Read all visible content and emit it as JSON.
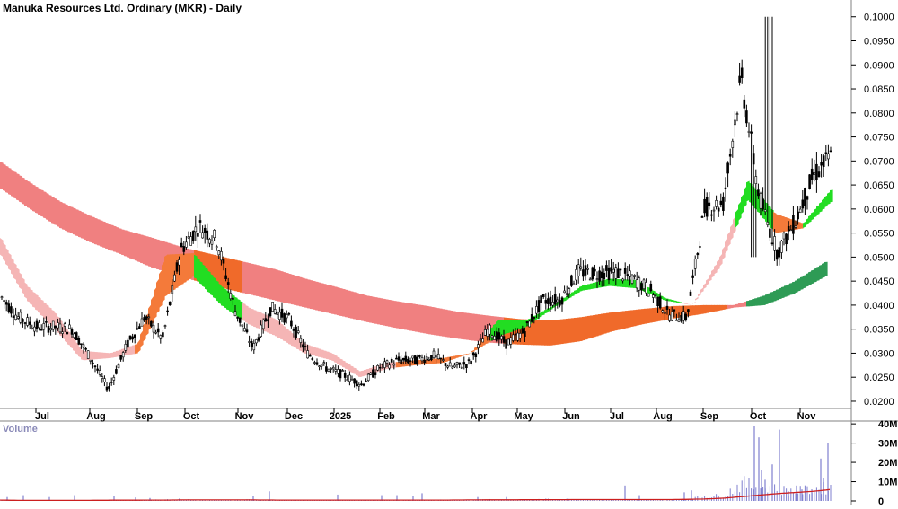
{
  "chart_data": {
    "type": "candlestick",
    "title": "Manuka Resources Ltd. Ordinary (MKR) - Daily",
    "price_axis": {
      "ylim": [
        0.0185,
        0.1035
      ],
      "ticks": [
        "0.0200",
        "0.0250",
        "0.0300",
        "0.0350",
        "0.0400",
        "0.0450",
        "0.0500",
        "0.0550",
        "0.0600",
        "0.0650",
        "0.0700",
        "0.0750",
        "0.0800",
        "0.0850",
        "0.0900",
        "0.0950",
        "0.1000"
      ],
      "position": "right"
    },
    "volume_axis": {
      "label": "Volume",
      "ylim": [
        0,
        41
      ],
      "ticks": [
        "0",
        "10M",
        "20M",
        "30M",
        "40M"
      ]
    },
    "x_months": [
      "Jul",
      "Aug",
      "Sep",
      "Oct",
      "Nov",
      "Dec",
      "2025",
      "Feb",
      "Mar",
      "Apr",
      "May",
      "Jun",
      "Jul",
      "Aug",
      "Sep",
      "Oct",
      "Nov"
    ],
    "price_anchors": [
      [
        0.043,
        0.041
      ],
      [
        0.038,
        0.037
      ],
      [
        0.035,
        0.036
      ],
      [
        0.036,
        0.035
      ],
      [
        0.034,
        0.036
      ],
      [
        0.03,
        0.028
      ],
      [
        0.023,
        0.022
      ],
      [
        0.03,
        0.033
      ],
      [
        0.038,
        0.037
      ],
      [
        0.032,
        0.034
      ],
      [
        0.048,
        0.055
      ],
      [
        0.057,
        0.056
      ],
      [
        0.055,
        0.052
      ],
      [
        0.042,
        0.036
      ],
      [
        0.024,
        0.038
      ],
      [
        0.039,
        0.04
      ],
      [
        0.036,
        0.038
      ],
      [
        0.031,
        0.029
      ],
      [
        0.028,
        0.026
      ],
      [
        0.026,
        0.025
      ],
      [
        0.023,
        0.024
      ],
      [
        0.025,
        0.029
      ],
      [
        0.029,
        0.028
      ],
      [
        0.028,
        0.029
      ],
      [
        0.029,
        0.03
      ],
      [
        0.028,
        0.026
      ],
      [
        0.027,
        0.029
      ],
      [
        0.036,
        0.034
      ],
      [
        0.033,
        0.031
      ],
      [
        0.033,
        0.036
      ],
      [
        0.04,
        0.042
      ],
      [
        0.039,
        0.043
      ],
      [
        0.046,
        0.048
      ],
      [
        0.047,
        0.046
      ],
      [
        0.046,
        0.048
      ],
      [
        0.046,
        0.045
      ],
      [
        0.044,
        0.042
      ],
      [
        0.04,
        0.036
      ],
      [
        0.035,
        0.04
      ],
      [
        0.055,
        0.066
      ],
      [
        0.06,
        0.062
      ],
      [
        0.085,
        0.09
      ],
      [
        0.065,
        0.06
      ],
      [
        0.05,
        0.052
      ],
      [
        0.055,
        0.06
      ],
      [
        0.068,
        0.066
      ],
      [
        0.07,
        0.072
      ]
    ],
    "volume_anchors_M": [
      0.4,
      0.2,
      0.3,
      0.2,
      0.3,
      0.4,
      0.5,
      0.4,
      0.5,
      0.6,
      0.8,
      0.5,
      0.4,
      0.6,
      0.6,
      0.4,
      0.3,
      0.3,
      0.4,
      0.4,
      0.5,
      0.4,
      0.4,
      0.4,
      0.5,
      0.5,
      0.6,
      0.8,
      0.6,
      0.6,
      0.8,
      0.9,
      0.8,
      0.6,
      0.6,
      0.6,
      0.5,
      0.6,
      0.9,
      2.5,
      2.5,
      9,
      7,
      6,
      5,
      6,
      7
    ],
    "volume_average_M": [
      0.4,
      0.3,
      0.3,
      0.3,
      0.3,
      0.3,
      0.35,
      0.35,
      0.4,
      0.4,
      0.5,
      0.5,
      0.5,
      0.5,
      0.5,
      0.45,
      0.4,
      0.4,
      0.4,
      0.4,
      0.4,
      0.4,
      0.4,
      0.4,
      0.4,
      0.45,
      0.5,
      0.55,
      0.55,
      0.6,
      0.6,
      0.65,
      0.7,
      0.7,
      0.7,
      0.7,
      0.7,
      0.7,
      0.8,
      1.0,
      1.4,
      2.2,
      3.0,
      3.8,
      4.4,
      5.0,
      6.0
    ],
    "volume_spikes_M": [
      [
        8,
        2.0
      ],
      [
        26,
        3.0
      ],
      [
        55,
        2.0
      ],
      [
        83,
        3.0
      ],
      [
        127,
        2.5
      ],
      [
        151,
        1.8
      ],
      [
        167,
        1.5
      ],
      [
        282,
        2.5
      ],
      [
        300,
        5.0
      ],
      [
        376,
        3.3
      ],
      [
        425,
        3.0
      ],
      [
        442,
        3.0
      ],
      [
        460,
        2.5
      ],
      [
        470,
        4.0
      ],
      [
        532,
        2.0
      ],
      [
        564,
        2.0
      ],
      [
        696,
        8.0
      ],
      [
        712,
        3.0
      ],
      [
        762,
        4.5
      ],
      [
        770,
        5.5
      ],
      [
        840,
        39.0
      ],
      [
        845,
        33.0
      ],
      [
        848,
        16.0
      ],
      [
        852,
        11.0
      ],
      [
        860,
        19.0
      ],
      [
        868,
        37.0
      ],
      [
        878,
        5.0
      ],
      [
        887,
        8.0
      ],
      [
        893,
        6.0
      ],
      [
        904,
        6.0
      ],
      [
        914,
        22.0
      ],
      [
        917,
        12.0
      ],
      [
        922,
        30.0
      ]
    ],
    "guppy_long": {
      "top": [
        0.07,
        0.0655,
        0.0615,
        0.0585,
        0.0558,
        0.054,
        0.052,
        0.0505,
        0.049,
        0.0475,
        0.0455,
        0.0438,
        0.042,
        0.0408,
        0.0398,
        0.0386,
        0.0378,
        0.0371,
        0.0368,
        0.0375,
        0.0385,
        0.0392,
        0.0398,
        0.04,
        0.04,
        0.042,
        0.045,
        0.049
      ],
      "bottom": [
        0.0645,
        0.06,
        0.056,
        0.053,
        0.0505,
        0.0478,
        0.0458,
        0.044,
        0.0425,
        0.041,
        0.0395,
        0.038,
        0.0365,
        0.0352,
        0.034,
        0.033,
        0.0322,
        0.0318,
        0.0316,
        0.0325,
        0.0345,
        0.036,
        0.0372,
        0.0382,
        0.0395,
        0.04,
        0.0425,
        0.046
      ]
    },
    "guppy_short": {
      "top": [
        0.0545,
        0.044,
        0.0385,
        0.0305,
        0.03,
        0.032,
        0.0505,
        0.0508,
        0.044,
        0.0395,
        0.037,
        0.032,
        0.03,
        0.0262,
        0.028,
        0.0285,
        0.029,
        0.03,
        0.037,
        0.0368,
        0.04,
        0.044,
        0.0455,
        0.0452,
        0.0415,
        0.04,
        0.05,
        0.066,
        0.059,
        0.057,
        0.064
      ],
      "bottom": [
        0.051,
        0.041,
        0.035,
        0.0285,
        0.029,
        0.03,
        0.042,
        0.046,
        0.04,
        0.036,
        0.0335,
        0.03,
        0.0285,
        0.025,
        0.0268,
        0.0275,
        0.028,
        0.03,
        0.0335,
        0.0355,
        0.0395,
        0.043,
        0.044,
        0.0435,
        0.041,
        0.04,
        0.048,
        0.062,
        0.055,
        0.056,
        0.0615
      ]
    },
    "colors": {
      "long_bear": "#f08080",
      "long_mixed": "#f06a2a",
      "long_bull": "#2e9b55",
      "short_bear": "#f5b5b5",
      "short_mixed": "#f47a3a",
      "short_bull": "#22dd22",
      "candle": "#000000",
      "volume_bar": "#7f7fcf",
      "volume_avg": "#cc1f1f",
      "grid_line": "#808080"
    }
  }
}
